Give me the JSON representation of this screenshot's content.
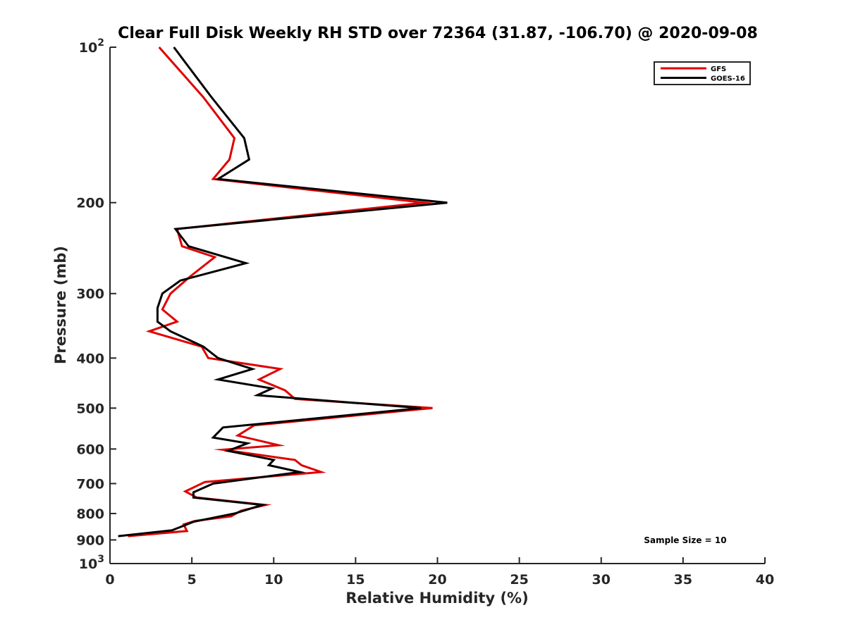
{
  "chart_data": {
    "type": "line",
    "title": "Clear Full Disk Weekly RH STD over 72364 (31.87, -106.70) @ 2020-09-08",
    "xlabel": "Relative Humidity (%)",
    "ylabel": "Pressure (mb)",
    "xlim": [
      0,
      40
    ],
    "ylim": [
      100,
      1000
    ],
    "y_scale": "log",
    "y_reversed": true,
    "x_ticks": [
      0,
      5,
      10,
      15,
      20,
      25,
      30,
      35,
      40
    ],
    "x_tick_labels": [
      "0",
      "5",
      "10",
      "15",
      "20",
      "25",
      "30",
      "35",
      "40"
    ],
    "y_ticks": [
      100,
      200,
      300,
      400,
      500,
      600,
      700,
      800,
      900,
      1000
    ],
    "y_tick_labels": [
      {
        "base": "10",
        "exp": "2"
      },
      {
        "base": "200"
      },
      {
        "base": "300"
      },
      {
        "base": "400"
      },
      {
        "base": "500"
      },
      {
        "base": "600"
      },
      {
        "base": "700"
      },
      {
        "base": "800"
      },
      {
        "base": "900"
      },
      {
        "base": "10",
        "exp": "3"
      }
    ],
    "legend_position": "top-right",
    "annotation": "Sample Size = 10",
    "series": [
      {
        "name": "GFS",
        "color": "#e00000",
        "points": [
          [
            3.0,
            100
          ],
          [
            5.7,
            125
          ],
          [
            7.6,
            150
          ],
          [
            7.3,
            165
          ],
          [
            6.3,
            180
          ],
          [
            19.2,
            200
          ],
          [
            4.1,
            225
          ],
          [
            4.4,
            243
          ],
          [
            6.4,
            255
          ],
          [
            4.9,
            278
          ],
          [
            3.7,
            300
          ],
          [
            3.2,
            322
          ],
          [
            4.1,
            340
          ],
          [
            2.4,
            355
          ],
          [
            5.6,
            380
          ],
          [
            6.0,
            400
          ],
          [
            10.4,
            420
          ],
          [
            9.1,
            440
          ],
          [
            10.7,
            462
          ],
          [
            11.3,
            480
          ],
          [
            19.7,
            500
          ],
          [
            8.8,
            540
          ],
          [
            7.8,
            565
          ],
          [
            10.3,
            590
          ],
          [
            6.9,
            602
          ],
          [
            11.3,
            630
          ],
          [
            11.7,
            645
          ],
          [
            12.9,
            665
          ],
          [
            5.8,
            695
          ],
          [
            4.6,
            725
          ],
          [
            5.3,
            745
          ],
          [
            9.5,
            770
          ],
          [
            8.0,
            790
          ],
          [
            7.4,
            810
          ],
          [
            5.2,
            827
          ],
          [
            4.5,
            840
          ],
          [
            4.7,
            865
          ],
          [
            1.1,
            885
          ]
        ]
      },
      {
        "name": "GOES-16",
        "color": "#000000",
        "points": [
          [
            3.9,
            100
          ],
          [
            6.2,
            125
          ],
          [
            8.2,
            150
          ],
          [
            8.5,
            165
          ],
          [
            6.6,
            180
          ],
          [
            20.6,
            200
          ],
          [
            4.0,
            225
          ],
          [
            4.8,
            243
          ],
          [
            8.3,
            262
          ],
          [
            4.3,
            283
          ],
          [
            3.2,
            300
          ],
          [
            2.9,
            320
          ],
          [
            2.9,
            340
          ],
          [
            3.7,
            355
          ],
          [
            5.7,
            380
          ],
          [
            6.6,
            400
          ],
          [
            8.7,
            420
          ],
          [
            6.6,
            440
          ],
          [
            9.9,
            458
          ],
          [
            9.0,
            472
          ],
          [
            19.0,
            500
          ],
          [
            6.9,
            545
          ],
          [
            6.3,
            570
          ],
          [
            8.4,
            585
          ],
          [
            7.2,
            605
          ],
          [
            10.0,
            630
          ],
          [
            9.7,
            645
          ],
          [
            11.6,
            665
          ],
          [
            6.3,
            700
          ],
          [
            5.1,
            728
          ],
          [
            5.1,
            745
          ],
          [
            9.3,
            770
          ],
          [
            7.6,
            800
          ],
          [
            5.1,
            830
          ],
          [
            3.8,
            862
          ],
          [
            0.5,
            885
          ]
        ]
      }
    ]
  }
}
